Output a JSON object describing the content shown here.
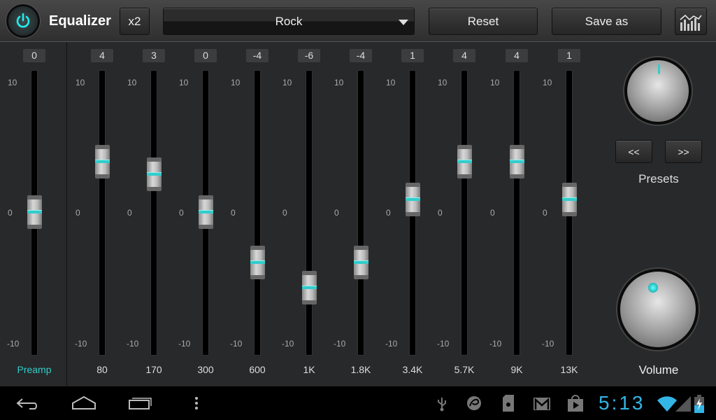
{
  "header": {
    "title": "Equalizer",
    "x2_label": "x2",
    "preset_selected": "Rock",
    "reset_label": "Reset",
    "save_as_label": "Save as"
  },
  "accent": "#33cccc",
  "range_labels": {
    "max": "10",
    "mid": "0",
    "min": "-10"
  },
  "preamp": {
    "label": "Preamp",
    "value": 0
  },
  "bands": [
    {
      "label": "80",
      "value": 4
    },
    {
      "label": "170",
      "value": 3
    },
    {
      "label": "300",
      "value": 0
    },
    {
      "label": "600",
      "value": -4
    },
    {
      "label": "1K",
      "value": -6
    },
    {
      "label": "1.8K",
      "value": -4
    },
    {
      "label": "3.4K",
      "value": 1
    },
    {
      "label": "5.7K",
      "value": 4
    },
    {
      "label": "9K",
      "value": 4
    },
    {
      "label": "13K",
      "value": 1
    }
  ],
  "presets": {
    "prev_label": "<<",
    "next_label": ">>",
    "label": "Presets"
  },
  "volume": {
    "label": "Volume"
  },
  "status": {
    "time": "5:13",
    "icons": [
      "usb-icon",
      "sync-icon",
      "sd-card-icon",
      "gmail-icon",
      "play-store-icon",
      "wifi-icon",
      "signal-icon",
      "battery-charging-icon"
    ]
  },
  "nav": {
    "icons": [
      "back-icon",
      "home-icon",
      "recent-apps-icon",
      "menu-icon"
    ]
  }
}
